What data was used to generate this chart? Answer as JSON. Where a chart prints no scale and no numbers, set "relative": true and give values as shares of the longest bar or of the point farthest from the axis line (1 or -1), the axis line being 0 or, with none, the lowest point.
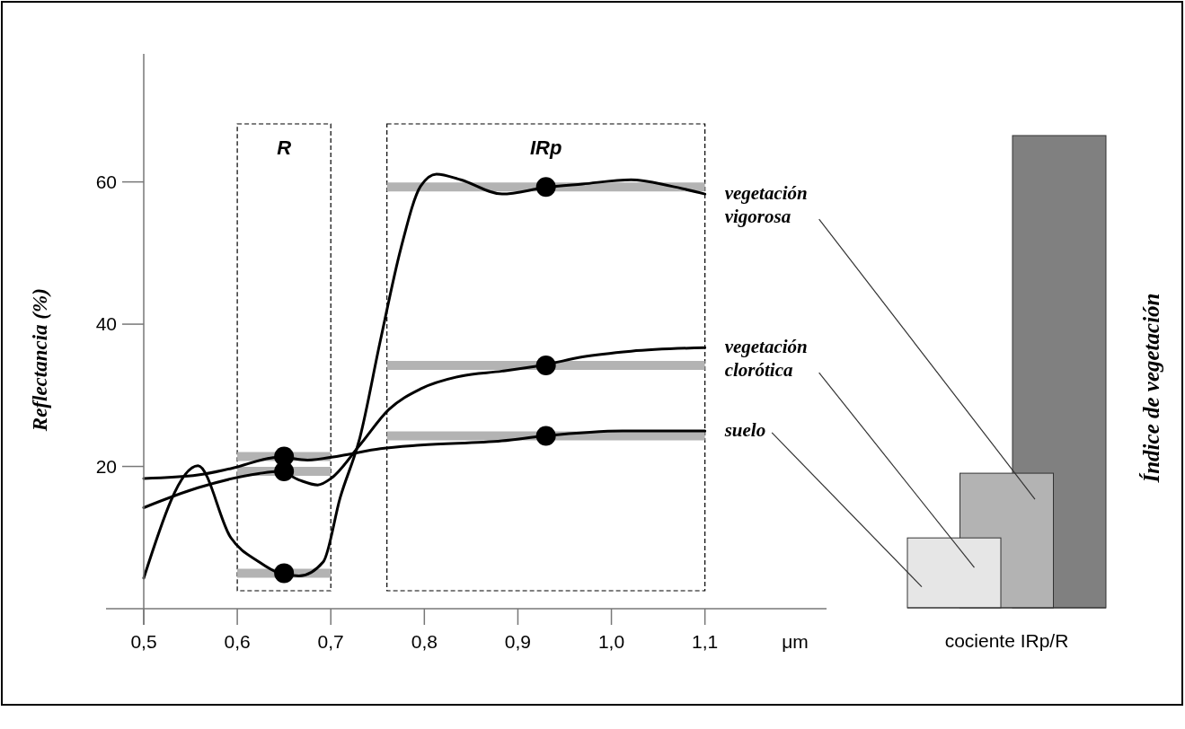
{
  "chart_data": [
    {
      "type": "line",
      "ylabel": "Reflectancia (%)",
      "xlabel": "μm",
      "xlim": [
        0.5,
        1.23
      ],
      "ylim": [
        0,
        78
      ],
      "xticks": [
        {
          "value": 0.5,
          "label": "0,5"
        },
        {
          "value": 0.6,
          "label": "0,6"
        },
        {
          "value": 0.7,
          "label": "0,7"
        },
        {
          "value": 0.8,
          "label": "0,8"
        },
        {
          "value": 0.9,
          "label": "0,9"
        },
        {
          "value": 1.0,
          "label": "1,0"
        },
        {
          "value": 1.1,
          "label": "1,1"
        }
      ],
      "yticks": [
        20,
        40,
        60
      ],
      "bands": [
        {
          "axis": "x",
          "from": 0.6,
          "to": 0.7,
          "label": "R"
        },
        {
          "axis": "x",
          "from": 0.76,
          "to": 1.1,
          "label": "IRp"
        }
      ],
      "series": [
        {
          "type": "line",
          "color": "#b3b3b3",
          "x": [
            0.6,
            0.7
          ],
          "values": [
            21.4,
            21.4
          ]
        },
        {
          "type": "line",
          "color": "#b3b3b3",
          "x": [
            0.6,
            0.7
          ],
          "values": [
            19.3,
            19.3
          ]
        },
        {
          "type": "line",
          "color": "#b3b3b3",
          "x": [
            0.6,
            0.7
          ],
          "values": [
            5.0,
            5.0
          ]
        },
        {
          "type": "line",
          "color": "#b3b3b3",
          "x": [
            0.76,
            1.1
          ],
          "values": [
            59.3,
            59.3
          ]
        },
        {
          "type": "line",
          "color": "#b3b3b3",
          "x": [
            0.76,
            1.1
          ],
          "values": [
            34.2,
            34.2
          ]
        },
        {
          "type": "line",
          "color": "#b3b3b3",
          "x": [
            0.76,
            1.1
          ],
          "values": [
            24.3,
            24.3
          ]
        },
        {
          "type": "line",
          "name": "vegetación vigorosa",
          "color": "#000000",
          "x": [
            0.5,
            0.558,
            0.593,
            0.623,
            0.645,
            0.666,
            0.692,
            0.71,
            0.731,
            0.753,
            0.775,
            0.796,
            0.813,
            0.839,
            0.883,
            0.929,
            0.969,
            1.021,
            1.064,
            1.1
          ],
          "values": [
            4.3,
            20.1,
            10,
            6.6,
            5.0,
            4.6,
            6.6,
            15.6,
            24,
            37.7,
            50.7,
            59.4,
            61.1,
            60.3,
            58.3,
            59.2,
            59.7,
            60.3,
            59.4,
            58.3
          ]
        },
        {
          "type": "line",
          "name": "vegetación clorótica",
          "color": "#000000",
          "x": [
            0.5,
            0.558,
            0.623,
            0.645,
            0.666,
            0.686,
            0.701,
            0.731,
            0.762,
            0.796,
            0.839,
            0.883,
            0.929,
            0.969,
            1.021,
            1.1
          ],
          "values": [
            14.2,
            17,
            19,
            19.3,
            18.1,
            17.4,
            18.4,
            23,
            28,
            30.9,
            32.7,
            33.4,
            34.3,
            35.4,
            36.2,
            36.7
          ]
        },
        {
          "type": "line",
          "name": "suelo",
          "color": "#000000",
          "x": [
            0.5,
            0.558,
            0.593,
            0.645,
            0.675,
            0.71,
            0.753,
            0.796,
            0.883,
            0.929,
            1.012,
            1.1
          ],
          "values": [
            18.3,
            18.8,
            19.7,
            21.3,
            20.9,
            21.5,
            22.5,
            23,
            23.6,
            24.3,
            25,
            25
          ]
        },
        {
          "type": "scatter",
          "color": "#000000",
          "marker": "circle",
          "x": [
            0.65,
            0.65,
            0.65,
            0.93,
            0.93,
            0.93
          ],
          "values": [
            21.4,
            19.3,
            5.0,
            59.3,
            34.2,
            24.3
          ]
        }
      ]
    },
    {
      "type": "bar",
      "relative": true,
      "categories": [
        null,
        null,
        null
      ],
      "values": [
        0.148,
        0.285,
        1
      ],
      "colors": [
        "#e6e6e6",
        "#b3b3b3",
        "#808080"
      ],
      "xlabel": "cociente IRp/R",
      "ylabel": "Índice de vegetación"
    }
  ]
}
